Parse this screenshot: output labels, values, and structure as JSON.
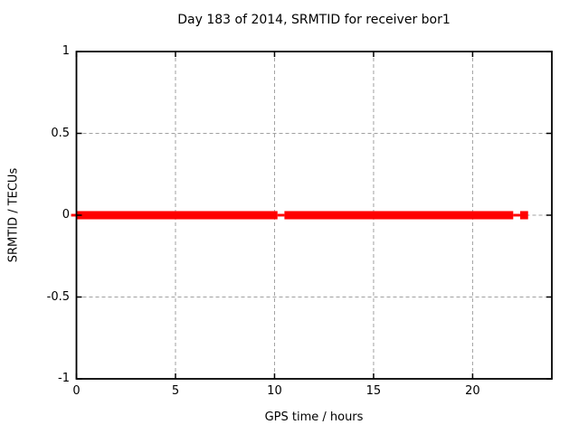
{
  "page": {
    "background_color": "#ffffff",
    "foreground_color": "#000000"
  },
  "chart_data": {
    "type": "line",
    "title": "Day 183 of 2014, SRMTID for receiver bor1",
    "xlabel": "GPS time / hours",
    "ylabel": "SRMTID / TECUs",
    "xlim": [
      0,
      24
    ],
    "ylim": [
      -1,
      1
    ],
    "x_ticks": [
      0,
      5,
      10,
      15,
      20
    ],
    "x_tick_labels": [
      "0",
      "5",
      "10",
      "15",
      "20"
    ],
    "y_ticks": [
      1,
      0.5,
      0,
      -0.5,
      -1
    ],
    "y_tick_labels": [
      "1",
      "0.5",
      "0",
      "-0.5",
      "-1"
    ],
    "grid": true,
    "grid_style": "dashed",
    "grid_color": "#a0a0a0",
    "legend": "none",
    "series_color": "#ff0000",
    "series": [
      {
        "name": "SRMTID",
        "description": "Dense noisy SRMTID values hugging 0 TECUs; appears as a thick red band at y=0 with quiet (thin-line) intervals, data ends near hour 22.8",
        "band_center_tecus": 0,
        "thick_band_halfwidth_tecus": 0.025,
        "thin_line_halfwidth_tecus": 0.008,
        "segments": [
          {
            "start_hour": -0.27,
            "end_hour": 0.0,
            "style": "thin"
          },
          {
            "start_hour": 0.0,
            "end_hour": 10.15,
            "style": "thick"
          },
          {
            "start_hour": 10.15,
            "end_hour": 10.5,
            "style": "thin"
          },
          {
            "start_hour": 10.5,
            "end_hour": 22.05,
            "style": "thick"
          },
          {
            "start_hour": 22.05,
            "end_hour": 22.4,
            "style": "thin"
          },
          {
            "start_hour": 22.4,
            "end_hour": 22.8,
            "style": "thick"
          }
        ]
      }
    ]
  }
}
